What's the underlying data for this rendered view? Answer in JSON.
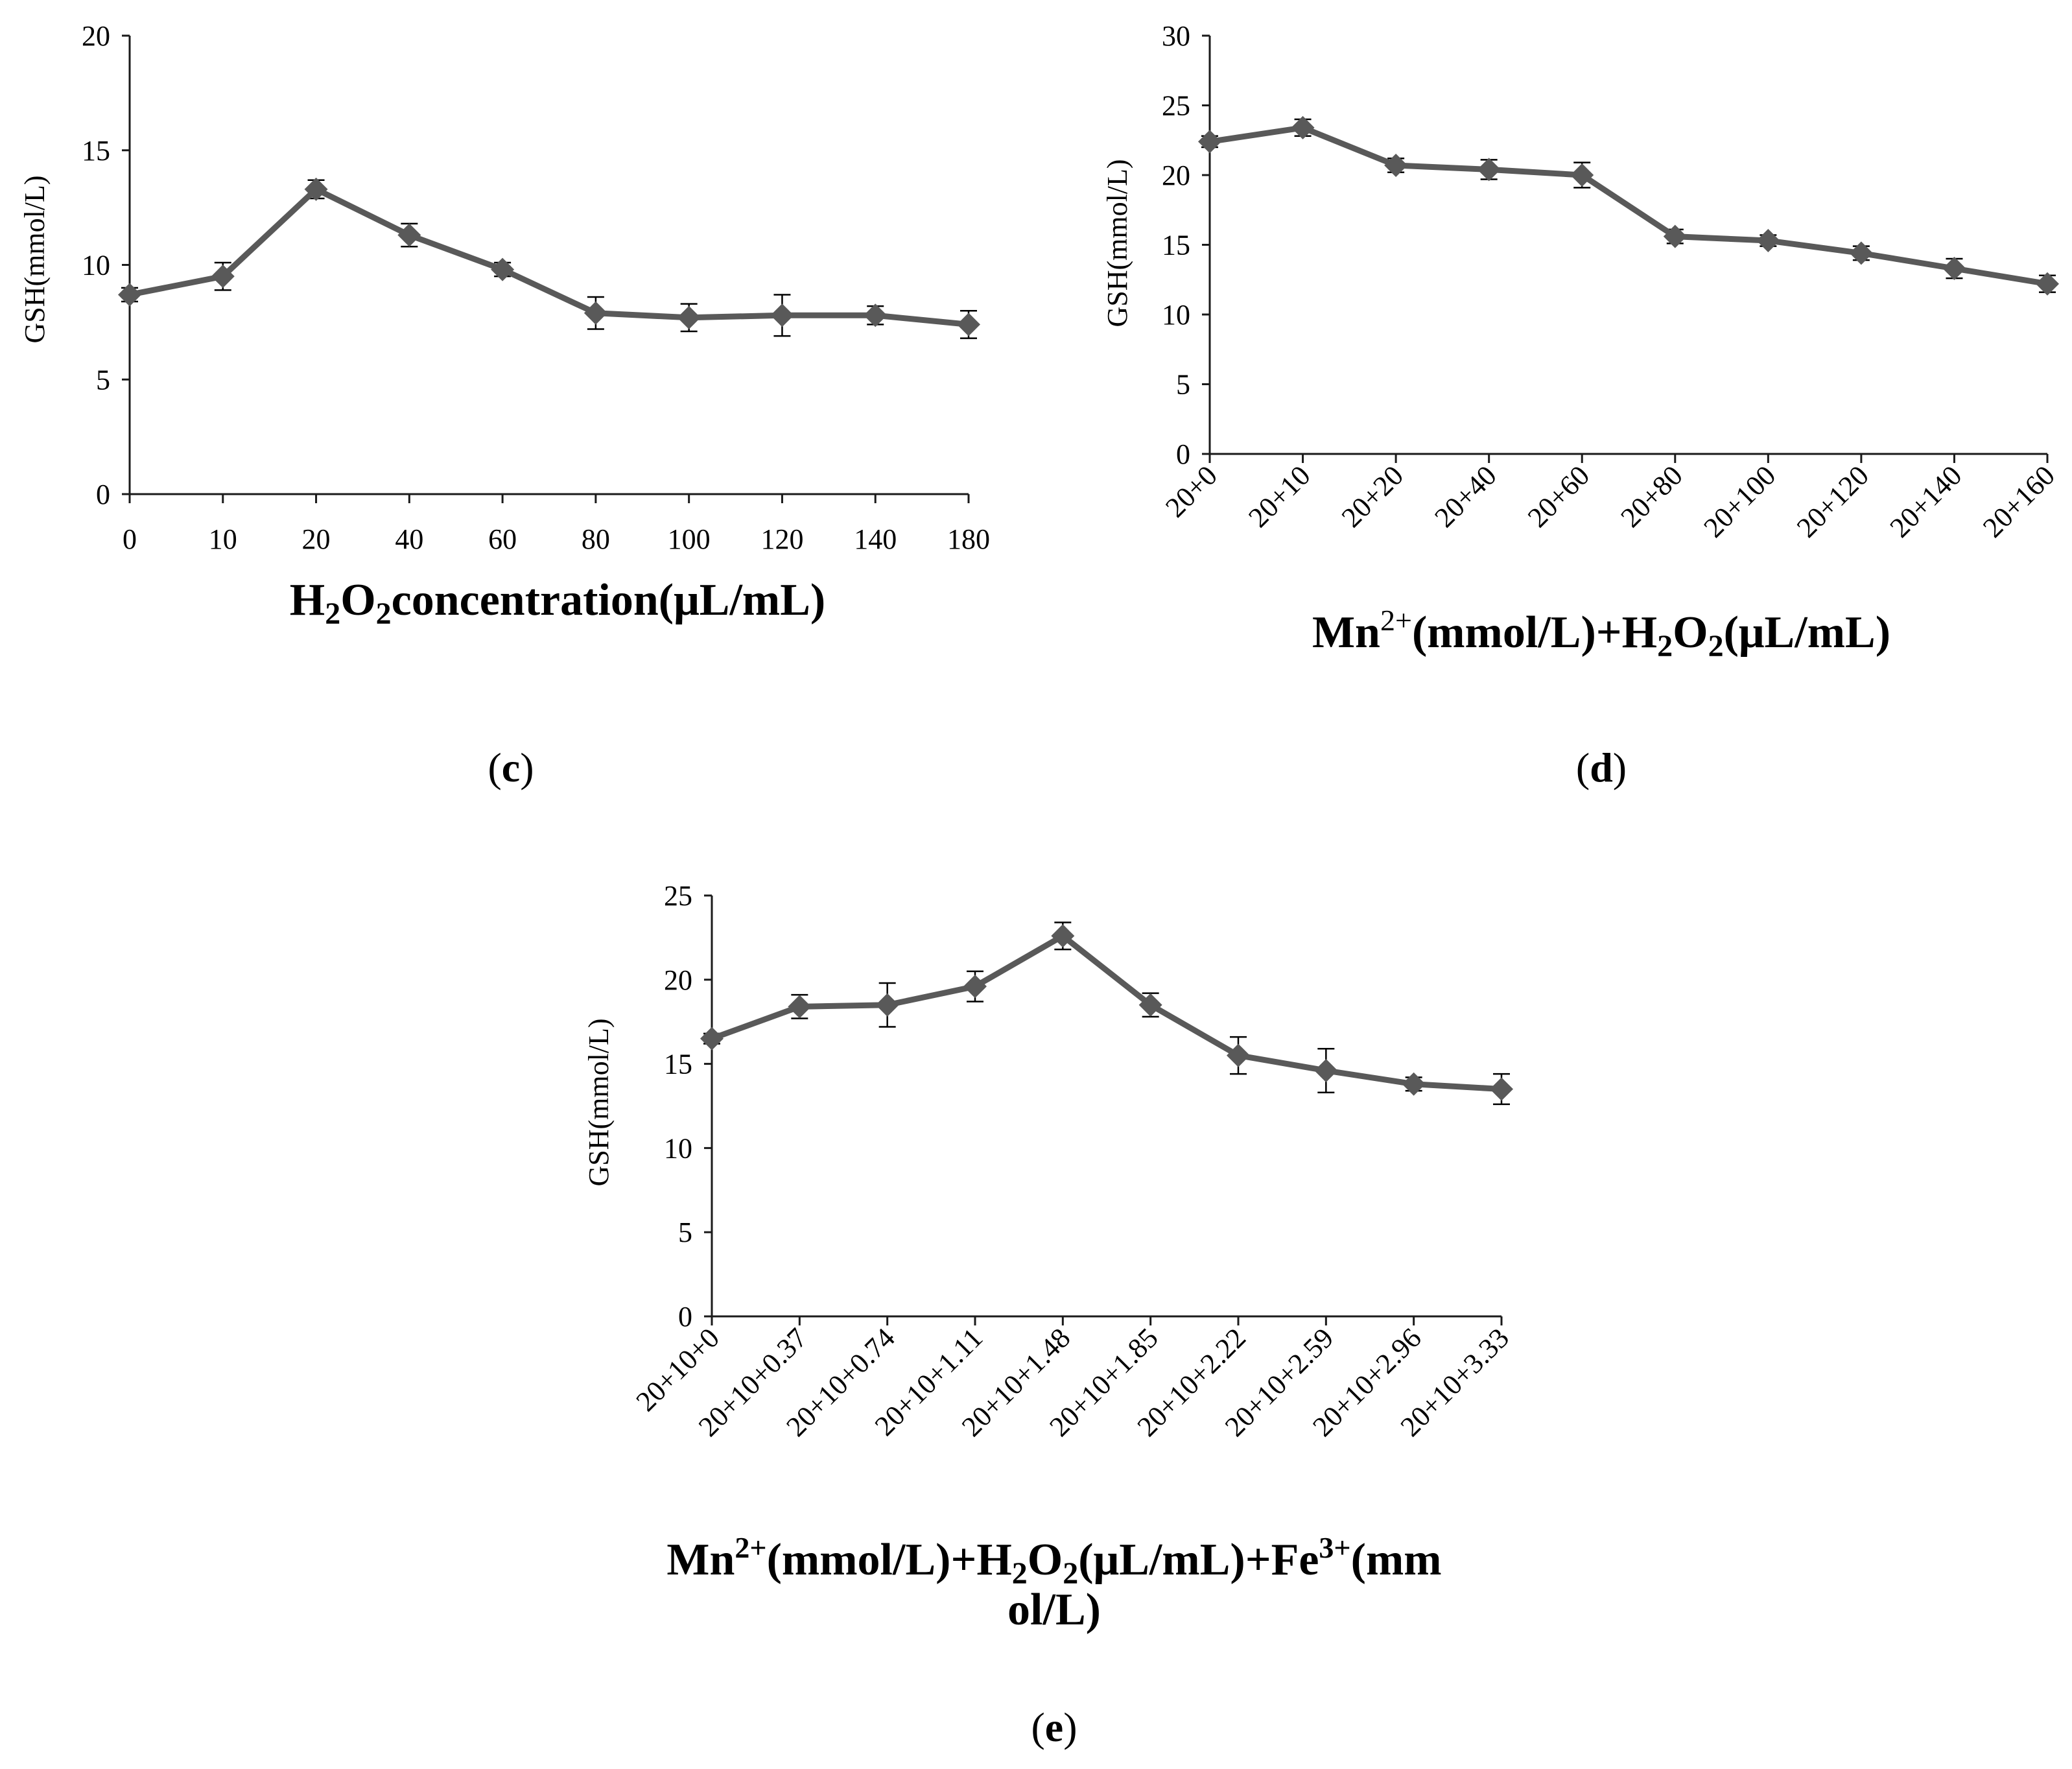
{
  "chart_data": [
    {
      "id": "c",
      "type": "line",
      "panel_label": "c",
      "ylabel": "GSH(mmol/L)",
      "xlabel": {
        "pre": "H",
        "sub1": "2",
        "mid": "O",
        "sub2": "2",
        "post": "concentration(μL/mL)"
      },
      "ylim": [
        0,
        20
      ],
      "yticks": [
        0,
        5,
        10,
        15,
        20
      ],
      "categories": [
        "0",
        "10",
        "20",
        "40",
        "60",
        "80",
        "100",
        "120",
        "140",
        "180"
      ],
      "values": [
        8.7,
        9.5,
        13.3,
        11.3,
        9.8,
        7.9,
        7.7,
        7.8,
        7.8,
        7.4
      ],
      "errors": [
        0.3,
        0.6,
        0.4,
        0.5,
        0.3,
        0.7,
        0.6,
        0.9,
        0.4,
        0.6
      ],
      "series_color": "#595959",
      "x_rotated": false
    },
    {
      "id": "d",
      "type": "line",
      "panel_label": "d",
      "ylabel": "GSH(mmol/L)",
      "xlabel": {
        "pre": "Mn",
        "sup1": "2+",
        "mid": "(mmol/L)+H",
        "sub1": "2",
        "mid2": "O",
        "sub2": "2",
        "post": "(μL/mL)"
      },
      "ylim": [
        0,
        30
      ],
      "yticks": [
        0,
        5,
        10,
        15,
        20,
        25,
        30
      ],
      "categories": [
        "20+0",
        "20+10",
        "20+20",
        "20+40",
        "20+60",
        "20+80",
        "20+100",
        "20+120",
        "20+140",
        "20+160"
      ],
      "values": [
        22.4,
        23.4,
        20.7,
        20.4,
        20.0,
        15.6,
        15.3,
        14.4,
        13.3,
        12.2
      ],
      "errors": [
        0.4,
        0.6,
        0.5,
        0.7,
        0.9,
        0.5,
        0.4,
        0.5,
        0.7,
        0.6
      ],
      "series_color": "#595959",
      "x_rotated": true
    },
    {
      "id": "e",
      "type": "line",
      "panel_label": "e",
      "ylabel": "GSH(mmol/L)",
      "xlabel": {
        "pre": "Mn",
        "sup1": "2+",
        "mid": "(mmol/L)+H",
        "sub1": "2",
        "mid2": "O",
        "sub2": "2",
        "mid3": "(μL/mL)+Fe",
        "sup2": "3+",
        "post": "(mm",
        "line2": "ol/L)"
      },
      "ylim": [
        0,
        25
      ],
      "yticks": [
        0,
        5,
        10,
        15,
        20,
        25
      ],
      "categories": [
        "20+10+0",
        "20+10+0.37",
        "20+10+0.74",
        "20+10+1.11",
        "20+10+1.48",
        "20+10+1.85",
        "20+10+2.22",
        "20+10+2.59",
        "20+10+2.96",
        "20+10+3.33"
      ],
      "values": [
        16.5,
        18.4,
        18.5,
        19.6,
        22.6,
        18.5,
        15.5,
        14.6,
        13.8,
        13.5
      ],
      "errors": [
        0.3,
        0.7,
        1.3,
        0.9,
        0.8,
        0.7,
        1.1,
        1.3,
        0.4,
        0.9
      ],
      "series_color": "#595959",
      "x_rotated": true
    }
  ]
}
